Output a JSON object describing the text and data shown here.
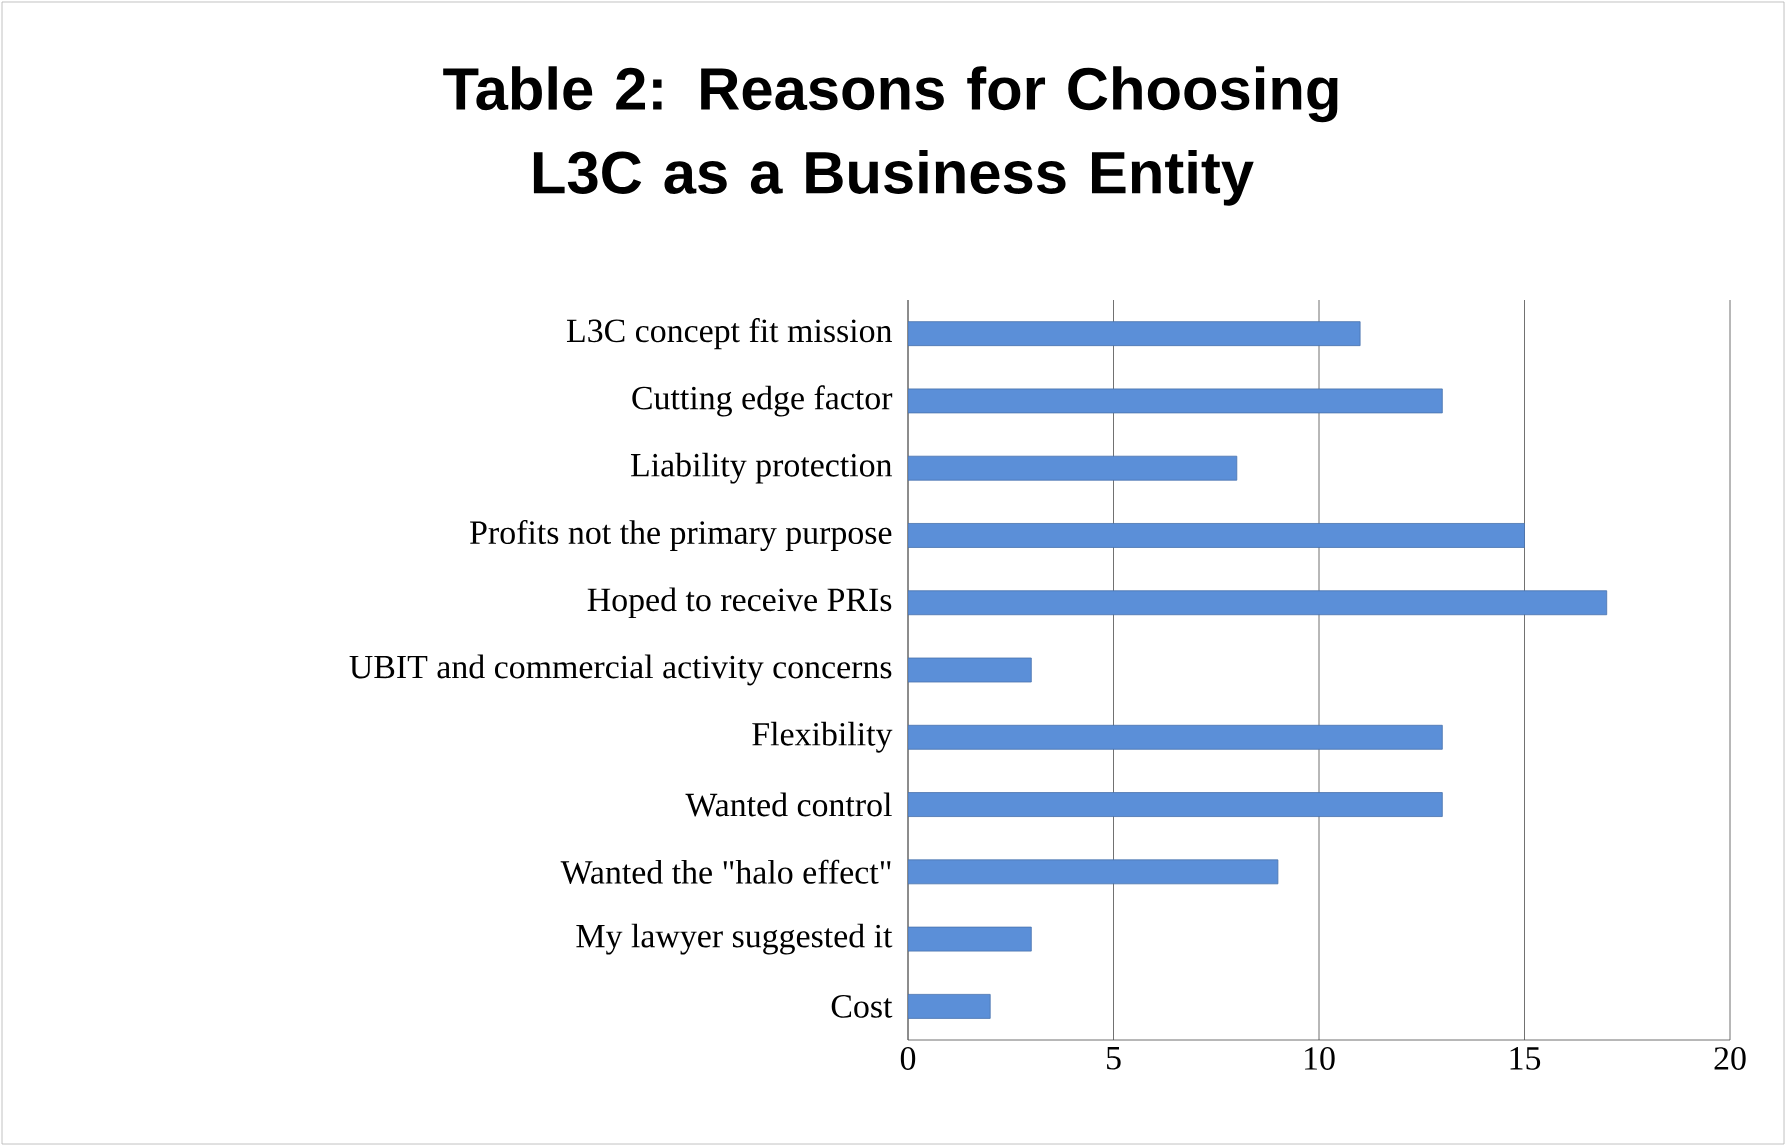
{
  "chart_data": {
    "type": "bar",
    "orientation": "horizontal",
    "title": "Table 2: Reasons for Choosing L3C as a Business Entity",
    "categories": [
      "L3C concept fit mission",
      "Cutting edge factor",
      "Liability protection",
      "Profits not the primary purpose",
      "Hoped to receive PRIs",
      "UBIT and commercial activity concerns",
      "Flexibility",
      "Wanted control",
      "Wanted the \"halo effect\"",
      "My lawyer suggested it",
      "Cost"
    ],
    "values": [
      11,
      13,
      8,
      15,
      17,
      3,
      13,
      13,
      9,
      3,
      2
    ],
    "color": "#5b8fd8",
    "xlim": [
      0,
      20
    ],
    "xticks": [
      0,
      5,
      10,
      15,
      20
    ],
    "grid": "x"
  }
}
